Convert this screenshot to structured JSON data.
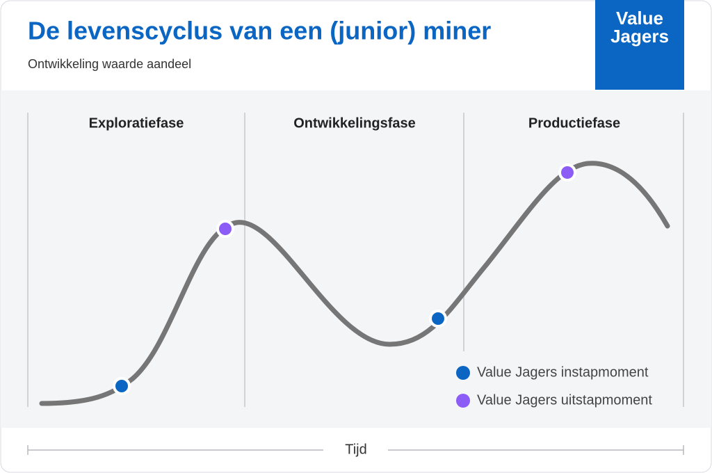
{
  "header": {
    "title": "De levenscyclus van een (junior) miner",
    "subtitle": "Ontwikkeling waarde aandeel",
    "logo": [
      "Value",
      "Jagers"
    ]
  },
  "phases": [
    "Exploratiefase",
    "Ontwikkelingsfase",
    "Productiefase"
  ],
  "legend": [
    {
      "label": "Value Jagers instapmoment",
      "color": "#0a66c2"
    },
    {
      "label": "Value Jagers uitstapmoment",
      "color": "#8b5cf6"
    }
  ],
  "axis_label": "Tijd"
}
